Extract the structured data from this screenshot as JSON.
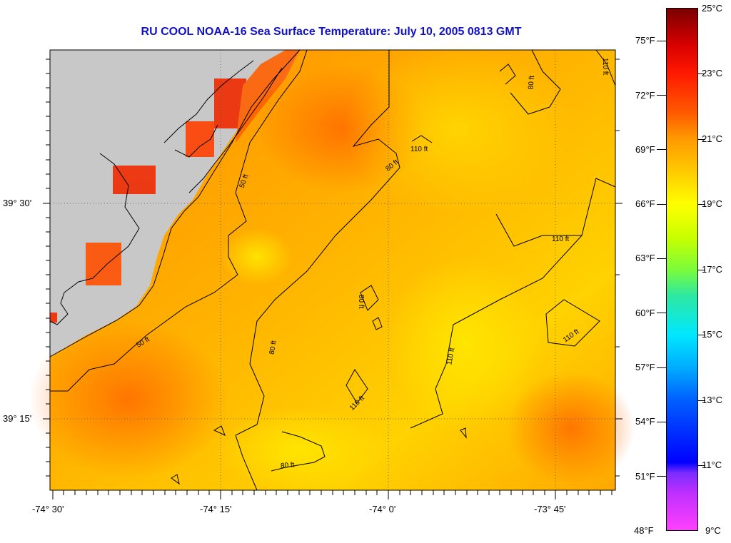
{
  "title": "RU COOL  NOAA-16  Sea Surface Temperature:  July 10, 2005 0813 GMT",
  "axes": {
    "x_ticks": [
      "-74° 30'",
      "-74° 15'",
      "-74° 0'",
      "-73° 45'"
    ],
    "y_ticks": [
      "39° 30'",
      "39° 15'"
    ]
  },
  "contours": [
    {
      "label": "50 ft"
    },
    {
      "label": "50 ft"
    },
    {
      "label": "80 ft"
    },
    {
      "label": "80 ft"
    },
    {
      "label": "80 ft"
    },
    {
      "label": "80 ft"
    },
    {
      "label": "80 ft"
    },
    {
      "label": "110 ft"
    },
    {
      "label": "110 ft"
    },
    {
      "label": "110 ft"
    },
    {
      "label": "110 ft"
    },
    {
      "label": "110 ft"
    },
    {
      "label": "110 ft"
    }
  ],
  "colorbar": {
    "fahrenheit": [
      "75°F",
      "72°F",
      "69°F",
      "66°F",
      "63°F",
      "60°F",
      "57°F",
      "54°F",
      "51°F",
      "48°F"
    ],
    "celsius": [
      "25°C",
      "23°C",
      "21°C",
      "19°C",
      "17°C",
      "15°C",
      "13°C",
      "11°C",
      "9°C"
    ]
  },
  "colors": {
    "title": "#1010c8",
    "land": "#c8c8c8",
    "sea_warm": "#ff7a00",
    "sea_mid": "#ffb000",
    "sea_cool": "#ffe600"
  }
}
